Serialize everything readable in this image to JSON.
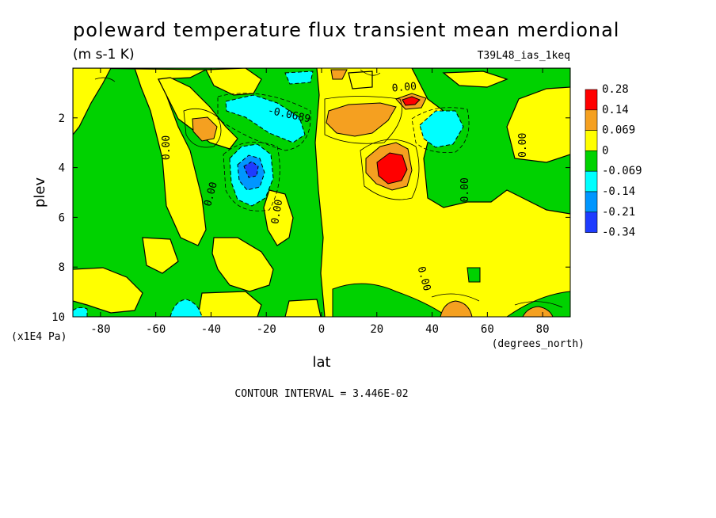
{
  "chart_data": {
    "type": "heatmap",
    "title": "poleward temperature flux transient mean merdional",
    "units": "(m s-1 K)",
    "run_label": "T39L48_ias_1keq",
    "xlabel": "lat",
    "x_unit_label": "(degrees_north)",
    "ylabel": "plev",
    "y_unit_label": "(x1E4 Pa)",
    "xlim": [
      -90,
      90
    ],
    "ylim": [
      0,
      10
    ],
    "y_inverted": true,
    "x_ticks": [
      -80,
      -60,
      -40,
      -20,
      0,
      20,
      40,
      60,
      80
    ],
    "x_tick_labels": [
      "-80",
      "-60",
      "-40",
      "-20",
      "0",
      "20",
      "40",
      "60",
      "80"
    ],
    "y_ticks": [
      2,
      4,
      6,
      8,
      10
    ],
    "y_tick_labels": [
      "2",
      "4",
      "6",
      "8",
      "10"
    ],
    "contour_interval_text": "CONTOUR INTERVAL = 3.446E-02",
    "legend_position": "right",
    "levels": [
      {
        "label": "0.28",
        "color": "#ff0000"
      },
      {
        "label": "0.14",
        "color": "#f5a020"
      },
      {
        "label": "0.069",
        "color": "#ffff00"
      },
      {
        "label": "0",
        "color": "#00d200"
      },
      {
        "label": "-0.069",
        "color": "#00ffff"
      },
      {
        "label": "-0.14",
        "color": "#0096ff"
      },
      {
        "label": "-0.21",
        "color": "#1e3cff"
      },
      {
        "label": "-0.34",
        "color": null
      }
    ],
    "contour_labels": [
      {
        "text": "0.00",
        "lat": -55,
        "plev": 3.2,
        "rotate": -90
      },
      {
        "text": "0.00",
        "lat": -39,
        "plev": 5.1,
        "rotate": -75
      },
      {
        "text": "-0.0689",
        "lat": -12,
        "plev": 2.0,
        "rotate": 12
      },
      {
        "text": "0.00",
        "lat": -15,
        "plev": 5.8,
        "rotate": -80
      },
      {
        "text": "0.00",
        "lat": 30,
        "plev": 0.9,
        "rotate": -5
      },
      {
        "text": "0.00",
        "lat": 53,
        "plev": 4.9,
        "rotate": -90
      },
      {
        "text": "0.00",
        "lat": 36,
        "plev": 8.5,
        "rotate": 75
      },
      {
        "text": "0.00",
        "lat": 74,
        "plev": 3.1,
        "rotate": -90
      }
    ]
  }
}
